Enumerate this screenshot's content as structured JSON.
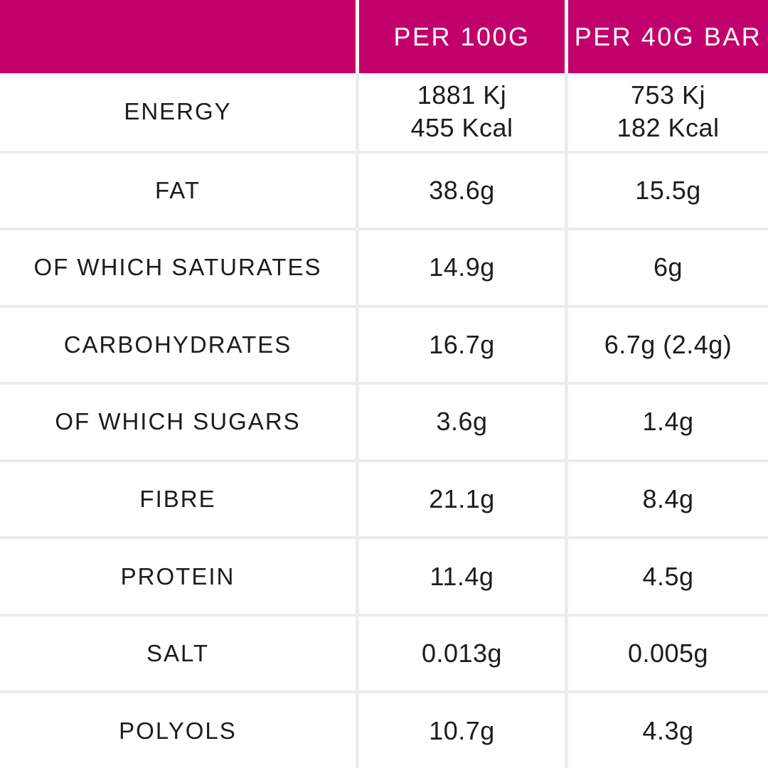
{
  "colors": {
    "header_bg": "#C2006C",
    "header_text": "#FFFFFF",
    "body_text": "#1C1C1A",
    "grid_line": "#ECECEC",
    "background": "#FFFFFF"
  },
  "table": {
    "columns": [
      "",
      "PER 100G",
      "PER 40G BAR"
    ],
    "rows": [
      {
        "label": "ENERGY",
        "per_100g": "1881 Kj\n455 Kcal",
        "per_40g_bar": "753 Kj\n182 Kcal"
      },
      {
        "label": "FAT",
        "per_100g": "38.6g",
        "per_40g_bar": "15.5g"
      },
      {
        "label": "OF WHICH SATURATES",
        "per_100g": "14.9g",
        "per_40g_bar": "6g"
      },
      {
        "label": "CARBOHYDRATES",
        "per_100g": "16.7g",
        "per_40g_bar": "6.7g (2.4g)"
      },
      {
        "label": "OF WHICH SUGARS",
        "per_100g": "3.6g",
        "per_40g_bar": "1.4g"
      },
      {
        "label": "FIBRE",
        "per_100g": "21.1g",
        "per_40g_bar": "8.4g"
      },
      {
        "label": "PROTEIN",
        "per_100g": "11.4g",
        "per_40g_bar": "4.5g"
      },
      {
        "label": "SALT",
        "per_100g": "0.013g",
        "per_40g_bar": "0.005g"
      },
      {
        "label": "POLYOLS",
        "per_100g": "10.7g",
        "per_40g_bar": "4.3g"
      }
    ]
  }
}
